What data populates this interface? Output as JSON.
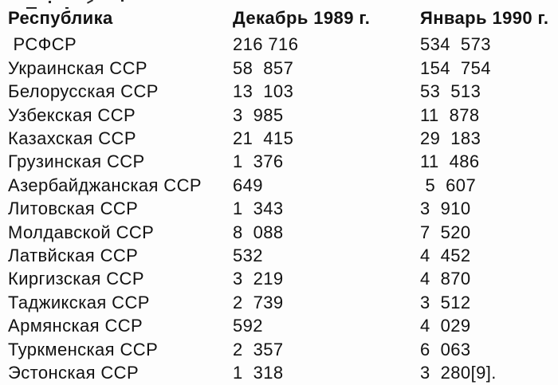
{
  "page": {
    "background": "#fdfdfd",
    "text_color": "#121212"
  },
  "table": {
    "columns": [
      "Республика",
      "Декабрь 1989 г.",
      "Январь 1990 г."
    ],
    "rows": [
      [
        " РСФСР",
        "216 716",
        "534  573"
      ],
      [
        "Украинская ССР",
        "58  857",
        "154  754"
      ],
      [
        "Белорусская ССР",
        "13  103",
        "53  513"
      ],
      [
        "Узбекская ССР",
        "3  985",
        "11  878"
      ],
      [
        "Казахская ССР",
        "21  415",
        "29  183"
      ],
      [
        "Грузинская ССР",
        "1  376",
        "11  486"
      ],
      [
        "Азербайджанская ССР",
        "649",
        " 5  607"
      ],
      [
        "Литовская ССР",
        "1  343",
        "3  910"
      ],
      [
        "Молдавской ССР",
        "8  088",
        "7  520"
      ],
      [
        "Латвйская ССР",
        "532",
        "4  452"
      ],
      [
        "Киргизская ССР",
        "3  219",
        "4  870"
      ],
      [
        "Таджикская ССР",
        "2  739",
        "3  512"
      ],
      [
        "Армянская ССР",
        "592",
        "4  029"
      ],
      [
        "Туркменская ССР",
        "2  357",
        "6  063"
      ],
      [
        "Эстонская ССР",
        "1  318",
        "3  280[9]."
      ]
    ]
  }
}
